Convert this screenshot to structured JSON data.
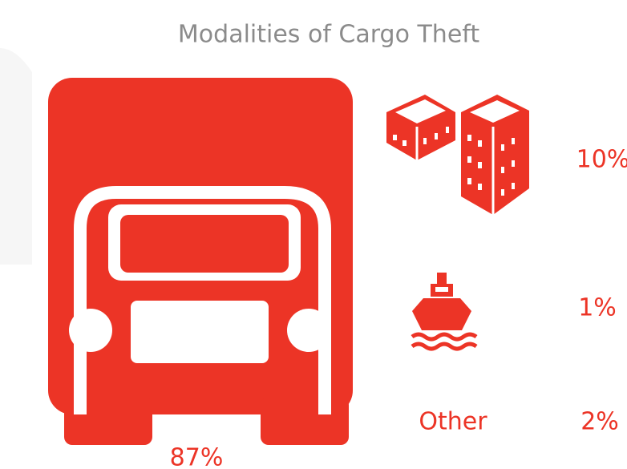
{
  "chart_data": {
    "type": "pictogram",
    "title": "Modalities of Cargo Theft",
    "categories": [
      null,
      null,
      null,
      "Other"
    ],
    "values": [
      87,
      10,
      1,
      2
    ],
    "value_labels": [
      "87%",
      "10%",
      "1%",
      "2%"
    ],
    "color": "#ec3426"
  }
}
